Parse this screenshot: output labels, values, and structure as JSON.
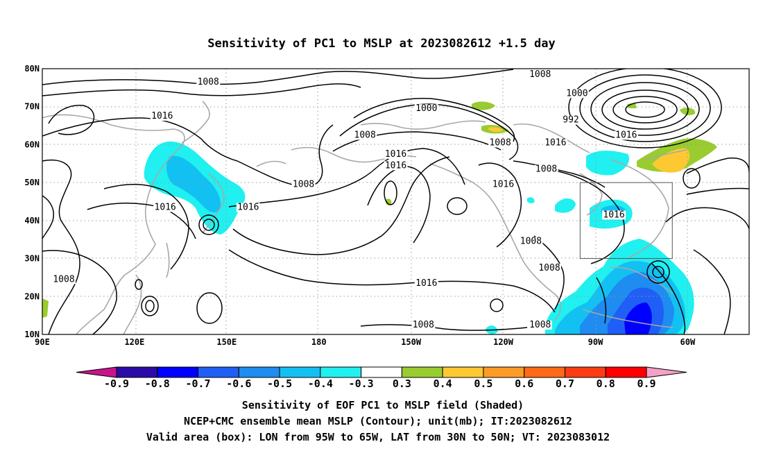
{
  "title": "Sensitivity of PC1 to MSLP at 2023082612 +1.5 day",
  "lat_labels": [
    "80N",
    "70N",
    "60N",
    "50N",
    "40N",
    "30N",
    "20N",
    "10N"
  ],
  "lon_labels": [
    "90E",
    "120E",
    "150E",
    "180",
    "150W",
    "120W",
    "90W",
    "60W"
  ],
  "contour_labels": [
    {
      "text": "1008",
      "lon": 144,
      "lat": 76
    },
    {
      "text": "1016",
      "lon": 129,
      "lat": 67
    },
    {
      "text": "1016",
      "lon": 130,
      "lat": 43
    },
    {
      "text": "1016",
      "lon": 157,
      "lat": 43
    },
    {
      "text": "1008",
      "lon": 175,
      "lat": 49
    },
    {
      "text": "1016",
      "lon": 205,
      "lat": 57
    },
    {
      "text": "1016",
      "lon": 205,
      "lat": 54
    },
    {
      "text": "1008",
      "lon": 195,
      "lat": 62
    },
    {
      "text": "1000",
      "lon": 215,
      "lat": 69
    },
    {
      "text": "1008",
      "lon": 239,
      "lat": 60
    },
    {
      "text": "1016",
      "lon": 240,
      "lat": 49
    },
    {
      "text": "1008",
      "lon": 252,
      "lat": 78
    },
    {
      "text": "1000",
      "lon": 264,
      "lat": 73
    },
    {
      "text": "992",
      "lon": 262,
      "lat": 66
    },
    {
      "text": "1016",
      "lon": 257,
      "lat": 60
    },
    {
      "text": "1008",
      "lon": 254,
      "lat": 53
    },
    {
      "text": "1016",
      "lon": 280,
      "lat": 62
    },
    {
      "text": "1016",
      "lon": 276,
      "lat": 41
    },
    {
      "text": "1008",
      "lon": 249,
      "lat": 34
    },
    {
      "text": "1008",
      "lon": 255,
      "lat": 27
    },
    {
      "text": "1016",
      "lon": 215,
      "lat": 23
    },
    {
      "text": "1008",
      "lon": 97,
      "lat": 24
    },
    {
      "text": "1008",
      "lon": 214,
      "lat": 12
    },
    {
      "text": "1008",
      "lon": 252,
      "lat": 12
    }
  ],
  "colorbar": {
    "labels": [
      "-0.9",
      "-0.8",
      "-0.7",
      "-0.6",
      "-0.5",
      "-0.4",
      "-0.3",
      "0.3",
      "0.4",
      "0.5",
      "0.6",
      "0.7",
      "0.8",
      "0.9"
    ],
    "colors": [
      "#2a0ba8",
      "#0000ff",
      "#1f5ff5",
      "#1e8cf0",
      "#13c0f2",
      "#20f0f0",
      "#ffffff",
      "#98cc2f",
      "#fcc933",
      "#fe9b27",
      "#ff6918",
      "#ff3b13",
      "#ff0000"
    ],
    "low_end_color": "#c8148c",
    "high_end_color": "#f4a1c8"
  },
  "box": {
    "lon_min": 265,
    "lon_max": 295,
    "lat_min": 30,
    "lat_max": 50
  },
  "caption": [
    "Sensitivity of EOF PC1 to MSLP field (Shaded)",
    "NCEP+CMC ensemble mean MSLP (Contour); unit(mb); IT:2023082612",
    "Valid area (box): LON from 95W to 65W, LAT from 30N to 50N; VT: 2023083012"
  ]
}
